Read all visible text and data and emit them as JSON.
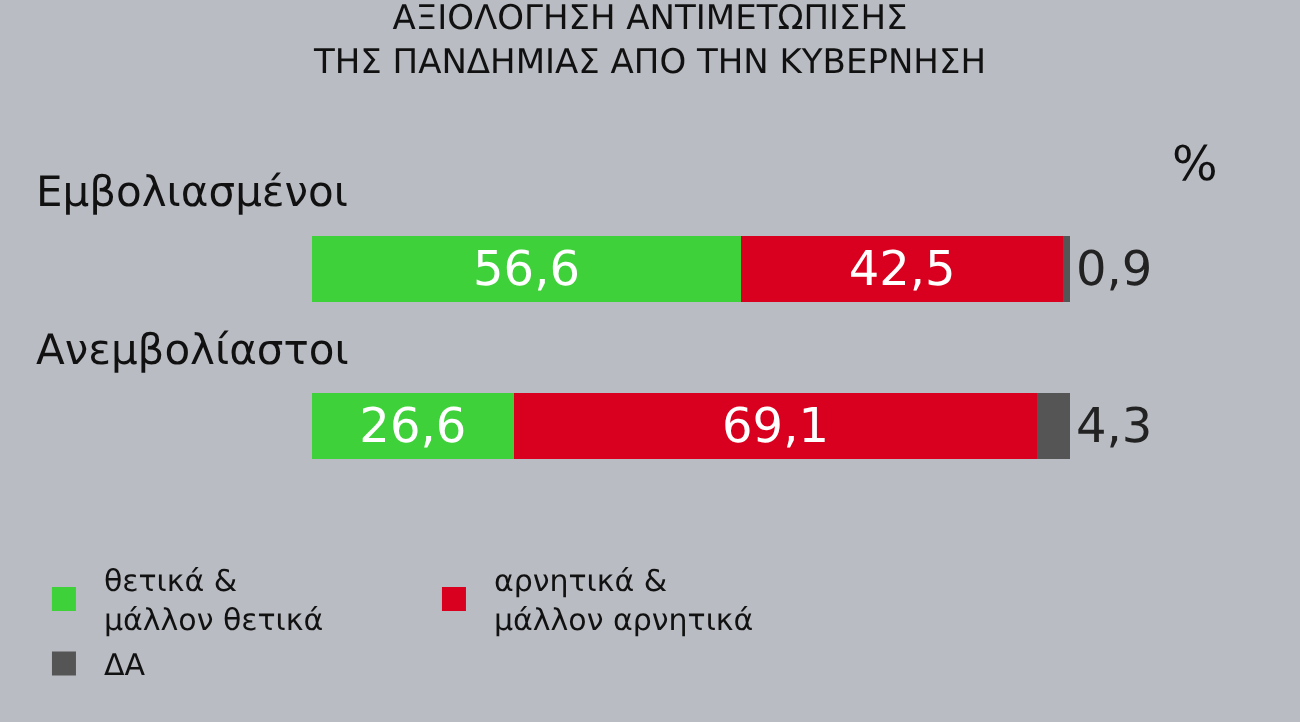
{
  "chart_data": {
    "type": "bar",
    "orientation": "horizontal",
    "stacked": true,
    "title": "ΑΞΙΟΛΟΓΗΣΗ ΑΝΤΙΜΕΤΩΠΙΣΗΣ\nΤΗΣ ΠΑΝΔΗΜΙΑΣ ΑΠΟ ΤΗΝ ΚΥΒΕΡΝΗΣΗ",
    "annotations": [
      "%"
    ],
    "categories": [
      "Εμβολιασμένοι",
      "Ανεμβολίαστοι"
    ],
    "xlim": [
      0,
      100
    ],
    "series": [
      {
        "name": "θετικά &\nμάλλον θετικά",
        "color": "#3fd13a",
        "values": [
          56.6,
          26.6
        ],
        "value_labels": [
          "56,6",
          "26,6"
        ]
      },
      {
        "name": "αρνητικά &\nμάλλον αρνητικά",
        "color": "#d9001f",
        "values": [
          42.5,
          69.1
        ],
        "value_labels": [
          "42,5",
          "69,1"
        ]
      },
      {
        "name": "ΔΑ",
        "color": "#555555",
        "values": [
          0.9,
          4.3
        ],
        "value_labels": [
          "0,9",
          "4,3"
        ]
      }
    ],
    "legend": "bottom"
  }
}
